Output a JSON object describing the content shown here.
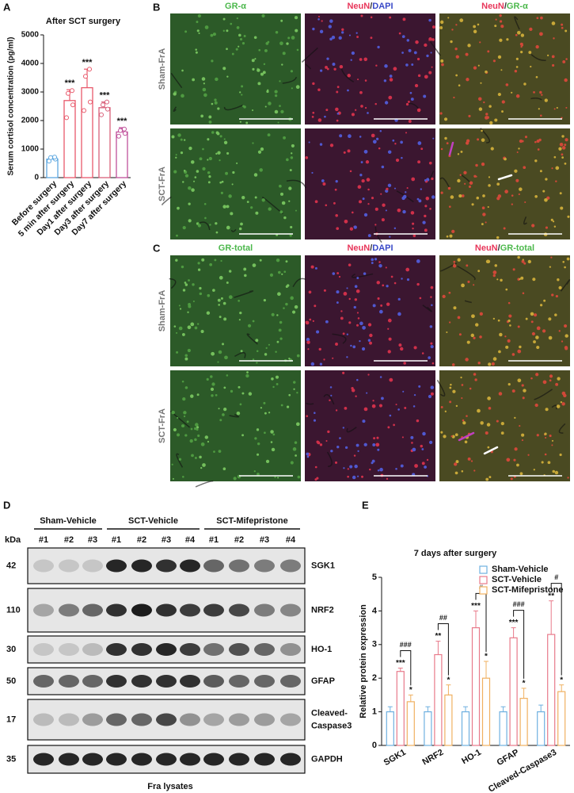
{
  "panel_a": {
    "letter": "A"
  },
  "panel_b": {
    "letter": "B",
    "columns": [
      [
        {
          "text": "GR-α",
          "color": "#4cb84c"
        }
      ],
      [
        {
          "text": "NeuN",
          "color": "#e8365a"
        },
        {
          "text": "/",
          "color": "#333333"
        },
        {
          "text": "DAPI",
          "color": "#3a4ac8"
        }
      ],
      [
        {
          "text": "NeuN",
          "color": "#e8365a"
        },
        {
          "text": "/",
          "color": "#333333"
        },
        {
          "text": "GR-α",
          "color": "#4cb84c"
        }
      ]
    ],
    "rows": [
      "Sham-FrA",
      "SCT-FrA"
    ]
  },
  "panel_c": {
    "letter": "C",
    "columns": [
      [
        {
          "text": "GR-total",
          "color": "#4cb84c"
        }
      ],
      [
        {
          "text": "NeuN",
          "color": "#e8365a"
        },
        {
          "text": "/",
          "color": "#333333"
        },
        {
          "text": "DAPI",
          "color": "#3a4ac8"
        }
      ],
      [
        {
          "text": "NeuN",
          "color": "#e8365a"
        },
        {
          "text": "/",
          "color": "#333333"
        },
        {
          "text": "GR-total",
          "color": "#4cb84c"
        }
      ]
    ],
    "rows": [
      "Sham-FrA",
      "SCT-FrA"
    ]
  },
  "panel_d": {
    "letter": "D",
    "kda_label": "kDa",
    "groups": [
      {
        "name": "Sham-Vehicle",
        "lanes": [
          "#1",
          "#2",
          "#3"
        ]
      },
      {
        "name": "SCT-Vehicle",
        "lanes": [
          "#1",
          "#2",
          "#3",
          "#4"
        ]
      },
      {
        "name": "SCT-Mifepristone",
        "lanes": [
          "#1",
          "#2",
          "#3",
          "#4"
        ]
      }
    ],
    "rows": [
      {
        "kda": 42,
        "name": [
          "SGK1"
        ]
      },
      {
        "kda": 110,
        "name": [
          "NRF2"
        ]
      },
      {
        "kda": 30,
        "name": [
          "HO-1"
        ]
      },
      {
        "kda": 50,
        "name": [
          "GFAP"
        ]
      },
      {
        "kda": 17,
        "name": [
          "Cleaved-",
          "Caspase3"
        ]
      },
      {
        "kda": 35,
        "name": [
          "GAPDH"
        ]
      }
    ],
    "footer": "Fra lysates"
  },
  "panel_e": {
    "letter": "E"
  },
  "chart_data": [
    {
      "type": "bar",
      "title": "After SCT surgery",
      "y_label": "Serum cortisol concentration (pg/ml)",
      "categories": [
        "Before surgery",
        "5 min after surgery",
        "Day1 after surgery",
        "Day3 after surgery",
        "Day7 after surgery"
      ],
      "values": [
        650,
        2700,
        3150,
        2450,
        1600
      ],
      "errors": [
        100,
        380,
        650,
        200,
        150
      ],
      "points": [
        [
          580,
          650,
          700,
          720
        ],
        [
          2100,
          2550,
          2950,
          3050
        ],
        [
          2350,
          2650,
          3550,
          3800
        ],
        [
          2200,
          2400,
          2550,
          2650
        ],
        [
          1450,
          1550,
          1650,
          1700
        ]
      ],
      "colors": [
        "#5fa8e0",
        "#e8596b",
        "#e8596b",
        "#d9607a",
        "#c0509a"
      ],
      "significance": [
        null,
        "***",
        "***",
        "***",
        "***"
      ],
      "ylim": [
        0,
        5000
      ],
      "yticks": [
        0,
        1000,
        2000,
        3000,
        4000,
        5000
      ]
    },
    {
      "type": "grouped_bar",
      "title": "7 days after surgery",
      "y_label": "Relative protein expression",
      "categories": [
        "SGK1",
        "NRF2",
        "HO-1",
        "GFAP",
        "Cleaved-Caspase3"
      ],
      "series": [
        {
          "name": "Sham-Vehicle",
          "color": "#6fb0e0",
          "values": [
            1.0,
            1.0,
            1.0,
            1.0,
            1.0
          ],
          "errors": [
            0.15,
            0.15,
            0.15,
            0.15,
            0.2
          ]
        },
        {
          "name": "SCT-Vehicle",
          "color": "#e87a8a",
          "values": [
            2.2,
            2.7,
            3.5,
            3.2,
            3.3
          ],
          "errors": [
            0.1,
            0.4,
            0.5,
            0.3,
            1.0
          ],
          "significance": [
            "***",
            "**",
            "***",
            "***",
            "**"
          ]
        },
        {
          "name": "SCT-Mifepristone",
          "color": "#f0b060",
          "values": [
            1.3,
            1.5,
            2.0,
            1.4,
            1.6
          ],
          "errors": [
            0.2,
            0.3,
            0.5,
            0.3,
            0.2
          ],
          "significance": [
            "*",
            "*",
            "*",
            "*",
            "*"
          ]
        }
      ],
      "comparisons": [
        "###",
        "##",
        "#",
        "###",
        "#"
      ],
      "ylim": [
        0,
        5
      ],
      "yticks": [
        0,
        1,
        2,
        3,
        4,
        5
      ],
      "legend": "top-right"
    }
  ]
}
